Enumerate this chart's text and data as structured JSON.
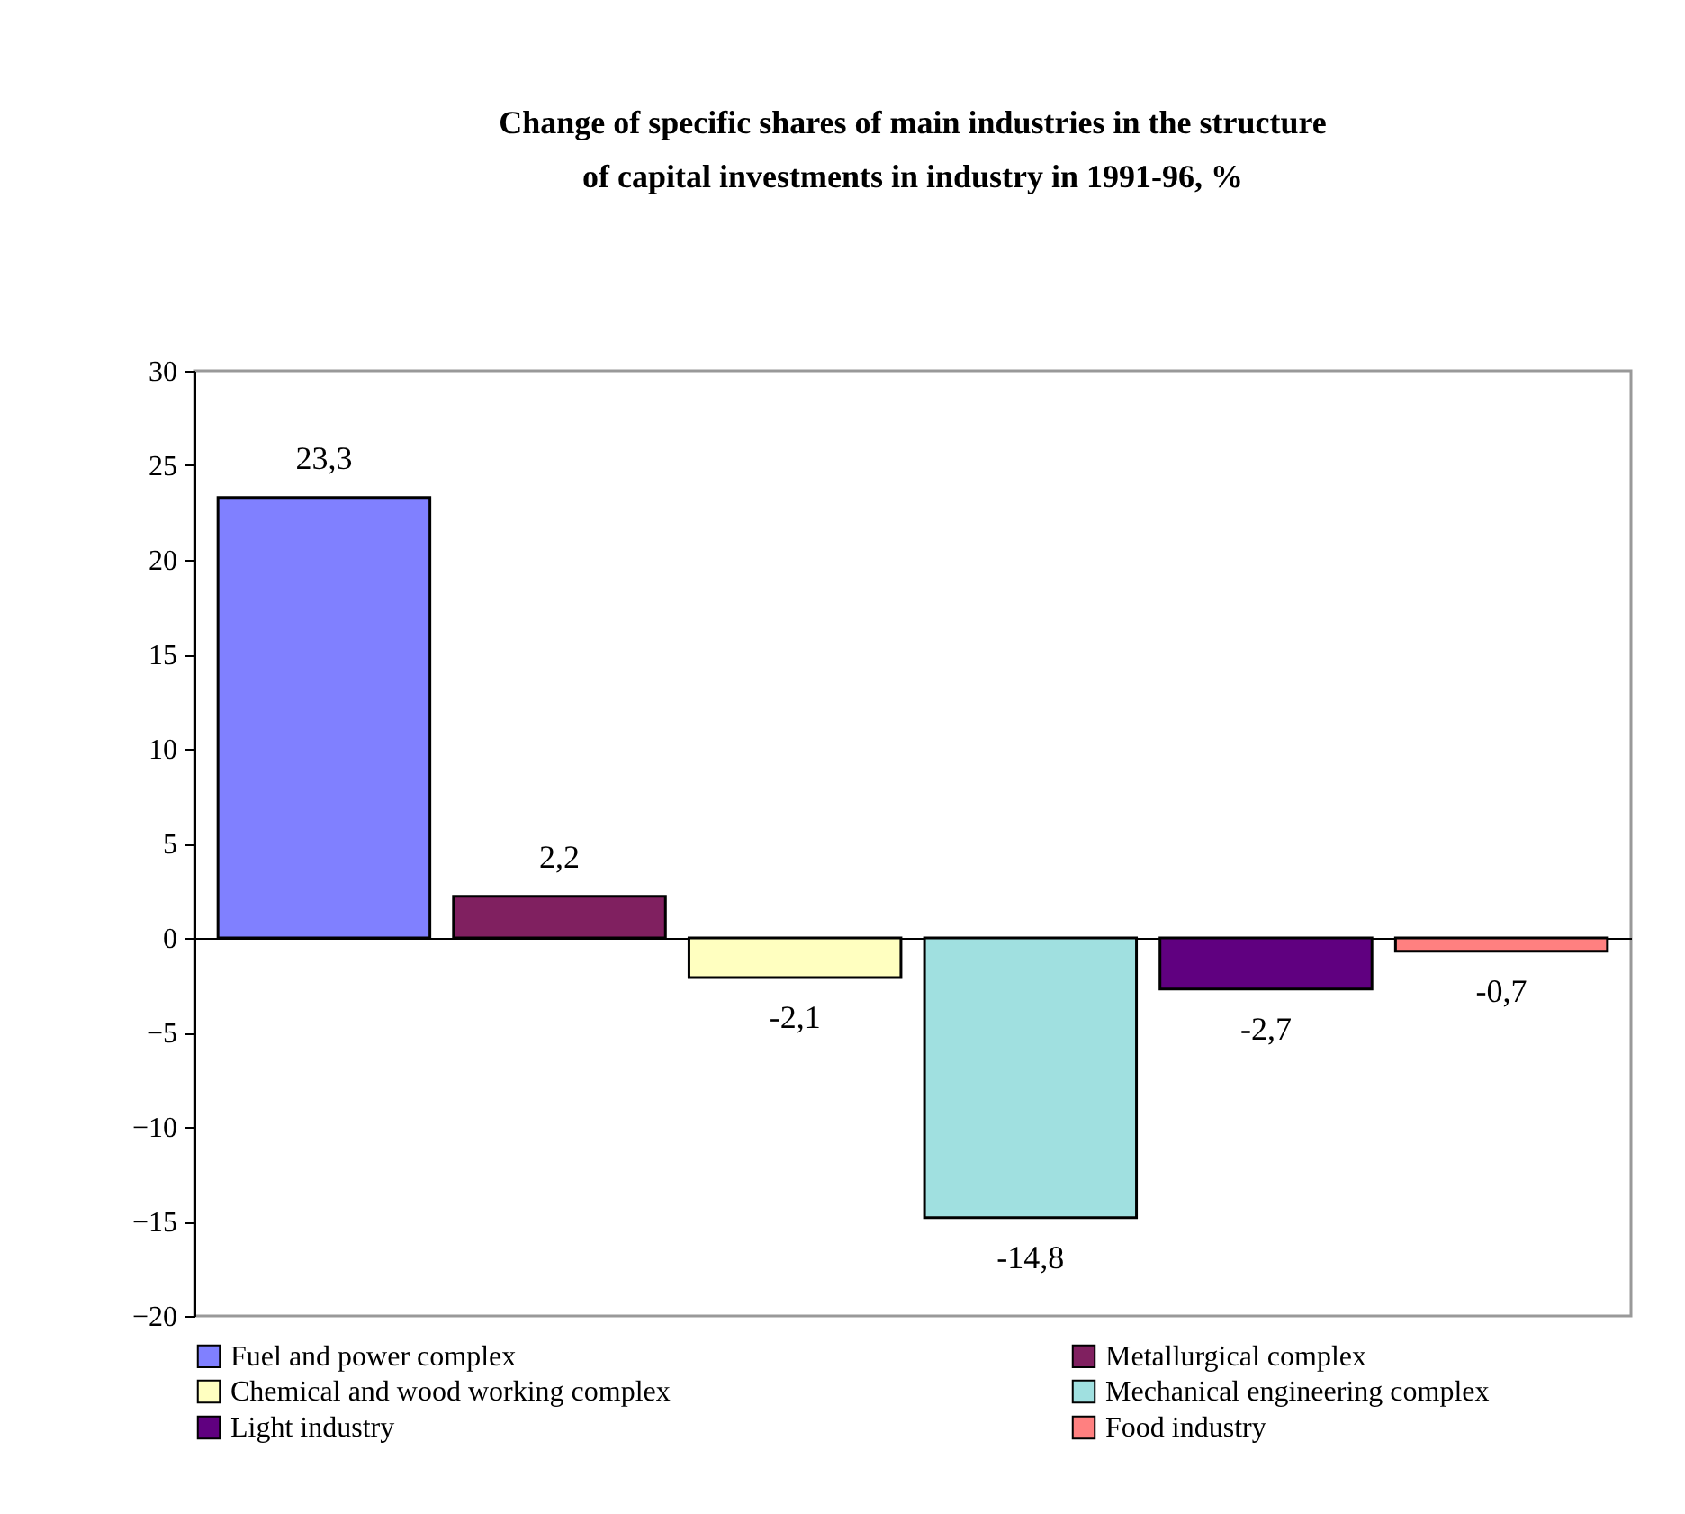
{
  "chart_data": {
    "type": "bar",
    "title": "Change of specific shares of main industries in the structure of capital investments in industry in 1991-96, %",
    "categories": [
      null
    ],
    "series": [
      {
        "name": "Fuel and power complex",
        "color": "#8080ff",
        "values": [
          23.3
        ],
        "value_labels": [
          "23,3"
        ]
      },
      {
        "name": "Metallurgical complex",
        "color": "#802060",
        "values": [
          2.2
        ],
        "value_labels": [
          "2,2"
        ]
      },
      {
        "name": "Chemical and wood working complex",
        "color": "#ffffc0",
        "values": [
          -2.1
        ],
        "value_labels": [
          "-2,1"
        ]
      },
      {
        "name": "Mechanical engineering complex",
        "color": "#a0e0e0",
        "values": [
          -14.8
        ],
        "value_labels": [
          "-14,8"
        ]
      },
      {
        "name": "Light industry",
        "color": "#600080",
        "values": [
          -2.7
        ],
        "value_labels": [
          "-2,7"
        ]
      },
      {
        "name": "Food industry",
        "color": "#ff8080",
        "values": [
          -0.7
        ],
        "value_labels": [
          "-0,7"
        ]
      }
    ],
    "ylim": [
      -20,
      30
    ],
    "yticks": [
      -20,
      -15,
      -10,
      -5,
      0,
      5,
      10,
      15,
      20,
      25,
      30
    ],
    "legend": "bottom",
    "tick_labels": "y"
  }
}
